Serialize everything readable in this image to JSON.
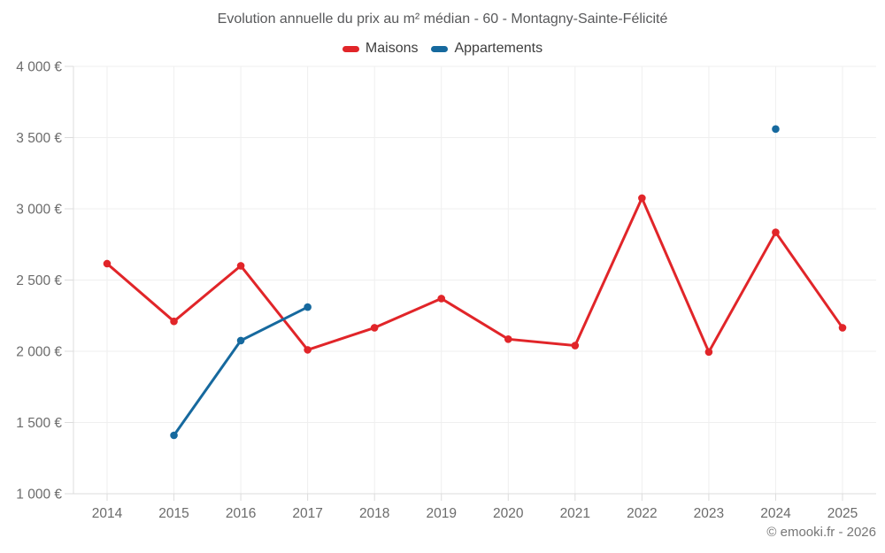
{
  "page": {
    "title": "Evolution annuelle du prix au m² médian - 60 - Montagny-Sainte-Félicité",
    "copyright": "© emooki.fr - 2026"
  },
  "chart_data": {
    "type": "line",
    "title": "Evolution annuelle du prix au m² médian - 60 - Montagny-Sainte-Félicité",
    "categories": [
      "2014",
      "2015",
      "2016",
      "2017",
      "2018",
      "2019",
      "2020",
      "2021",
      "2022",
      "2023",
      "2024",
      "2025"
    ],
    "series": [
      {
        "name": "Maisons",
        "color": "#e12529",
        "values": [
          2615,
          2210,
          2600,
          2010,
          2165,
          2370,
          2085,
          2040,
          3075,
          1995,
          2835,
          2165
        ]
      },
      {
        "name": "Appartements",
        "color": "#16699e",
        "values": [
          null,
          1410,
          2075,
          2310,
          null,
          null,
          null,
          null,
          null,
          null,
          3560,
          null
        ]
      }
    ],
    "xlabel": "",
    "ylabel": "",
    "ylim": [
      1000,
      4000
    ],
    "y_ticks": [
      {
        "value": 4000,
        "label": "4 000 €"
      },
      {
        "value": 3500,
        "label": "3 500 €"
      },
      {
        "value": 3000,
        "label": "3 000 €"
      },
      {
        "value": 2500,
        "label": "2 500 €"
      },
      {
        "value": 2000,
        "label": "2 000 €"
      },
      {
        "value": 1500,
        "label": "1 500 €"
      },
      {
        "value": 1000,
        "label": "1 000 €"
      }
    ],
    "grid": true,
    "legend_position": "top",
    "marker": "circle",
    "grid_color": "#efefef",
    "axis_color": "#dcdcdc",
    "tick_text_color": "#6b6b6b"
  }
}
